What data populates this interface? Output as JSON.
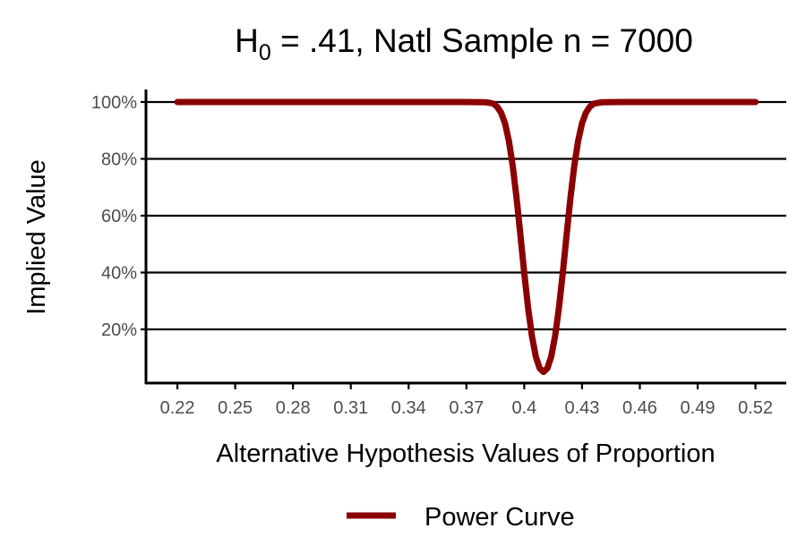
{
  "chart_data": {
    "type": "line",
    "title": {
      "main": "H",
      "subscript": "0",
      "rest": " = .41, Natl Sample n = 7000"
    },
    "xlabel": "Alternative Hypothesis Values of Proportion",
    "ylabel": "Implied Value",
    "xlim": [
      0.2037,
      0.536
    ],
    "ylim": [
      1.1,
      104.4
    ],
    "x_ticks": [
      0.22,
      0.25,
      0.28,
      0.31,
      0.34,
      0.37,
      0.4,
      0.43,
      0.46,
      0.49,
      0.52
    ],
    "x_tick_labels": [
      "0.22",
      "0.25",
      "0.28",
      "0.31",
      "0.34",
      "0.37",
      "0.4",
      "0.43",
      "0.46",
      "0.49",
      "0.52"
    ],
    "y_ticks": [
      20,
      40,
      60,
      80,
      100
    ],
    "y_tick_labels": [
      "20%",
      "40%",
      "60%",
      "80%",
      "100%"
    ],
    "grid": "horizontal major",
    "legend": {
      "position": "bottom",
      "entries": [
        "Power Curve"
      ]
    },
    "series": [
      {
        "name": "Power Curve",
        "color": "#8b0000",
        "x": [
          0.22,
          0.3,
          0.37,
          0.38,
          0.382,
          0.384,
          0.386,
          0.388,
          0.39,
          0.392,
          0.394,
          0.396,
          0.398,
          0.4,
          0.402,
          0.404,
          0.406,
          0.408,
          0.41,
          0.412,
          0.414,
          0.416,
          0.418,
          0.42,
          0.422,
          0.424,
          0.426,
          0.428,
          0.43,
          0.432,
          0.434,
          0.436,
          0.44,
          0.45,
          0.52
        ],
        "y": [
          100,
          100,
          100,
          99.9,
          99.7,
          99.4,
          98.3,
          96.2,
          92.5,
          86.4,
          77.6,
          66.3,
          53.2,
          39.8,
          27.5,
          17.6,
          10.4,
          6.3,
          5.0,
          6.3,
          10.4,
          17.6,
          27.5,
          39.8,
          53.2,
          66.3,
          77.6,
          86.4,
          92.5,
          96.2,
          98.3,
          99.4,
          99.9,
          100,
          100
        ]
      }
    ]
  }
}
